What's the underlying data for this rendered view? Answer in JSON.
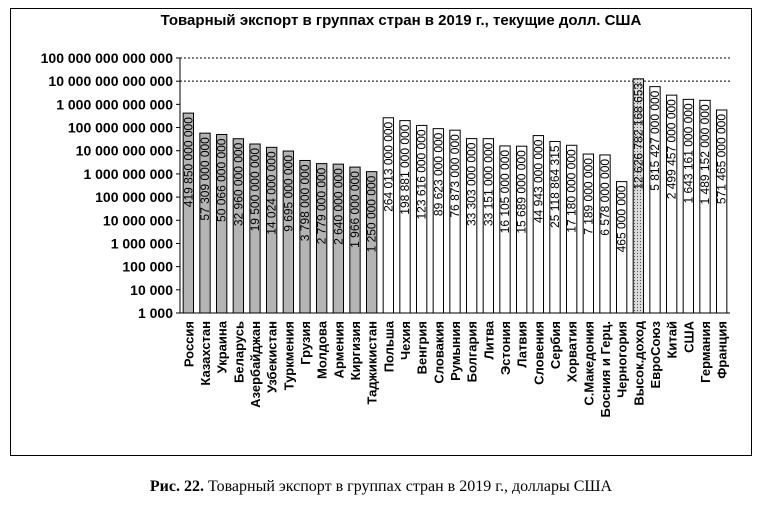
{
  "caption": {
    "label": "Рис. 22.",
    "text": "Товарный экспорт в группах стран в 2019 г., доллары США"
  },
  "colors": {
    "cis": "#b4b4b4",
    "highincome": "#dcdcdc",
    "other": "#ffffff"
  },
  "chart_data": {
    "type": "bar",
    "title": "Товарный экспорт в группах стран в 2019 г., текущие долл. США",
    "xlabel": "",
    "ylabel": "",
    "yscale": "log",
    "ylim": [
      1000,
      100000000000000
    ],
    "grid": "dotted horizontal lines at 10 000 000 000 000 and 100 000 000 000 000",
    "yticks": [
      "1 000",
      "10 000",
      "100 000",
      "1 000 000",
      "10 000 000",
      "100 000 000",
      "1 000 000 000",
      "10 000 000 000",
      "100 000 000 000",
      "1 000 000 000 000",
      "10 000 000 000 000",
      "100 000 000 000 000"
    ],
    "categories": [
      "Россия",
      "Казахстан",
      "Украина",
      "Беларусь",
      "Азербайджан",
      "Узбекистан",
      "Туркмения",
      "Грузия",
      "Молдова",
      "Армения",
      "Киргизия",
      "Таджикистан",
      "Польша",
      "Чехия",
      "Венгрия",
      "Словакия",
      "Румыния",
      "Болгария",
      "Литва",
      "Эстония",
      "Латвия",
      "Словения",
      "Сербия",
      "Хорватия",
      "С.Македония",
      "Босния и Герц.",
      "Черногория",
      "Высок.доход",
      "ЕвроСоюз",
      "Китай",
      "США",
      "Германия",
      "Франция"
    ],
    "values": [
      419850000000,
      57309000000,
      50066000000,
      32960000000,
      19500000000,
      14024000000,
      9695000000,
      3798000000,
      2779000000,
      2640000000,
      1966000000,
      1250000000,
      264013000000,
      198881000000,
      123616000000,
      89623000000,
      76873000000,
      33303000000,
      33151000000,
      16105000000,
      15689000000,
      44943000000,
      25118864315,
      17180000000,
      7189000000,
      6578000000,
      465000000,
      12626782168653,
      5815427000000,
      2499457000000,
      1643161000000,
      1489152000000,
      571465000000
    ],
    "labels": [
      "419 850 000 000",
      "57 309 000 000",
      "50 066 000 000",
      "32 960 000 000",
      "19 500 000 000",
      "14 024 000 000",
      "9 695 000 000",
      "3 798 000 000",
      "2 779 000 000",
      "2 640 000 000",
      "1 966 000 000",
      "1 250 000 000",
      "264 013 000 000",
      "198 881 000 000",
      "123 616 000 000",
      "89 623 000 000",
      "76 873 000 000",
      "33 303 000 000",
      "33 151 000 000",
      "16 105 000 000",
      "15 689 000 000",
      "44 943 000 000",
      "25 118 864 315",
      "17 180 000 000",
      "7 189 000 000",
      "6 578 000 000",
      "465 000 000",
      "12 626 782 168 653",
      "5 815 427 000 000",
      "2 499 457 000 000",
      "1 643 161 000 000",
      "1 489 152 000 000",
      "571 465 000 000"
    ],
    "groups": [
      "cis",
      "cis",
      "cis",
      "cis",
      "cis",
      "cis",
      "cis",
      "cis",
      "cis",
      "cis",
      "cis",
      "cis",
      "other",
      "other",
      "other",
      "other",
      "other",
      "other",
      "other",
      "other",
      "other",
      "other",
      "other",
      "other",
      "other",
      "other",
      "other",
      "highincome",
      "other",
      "other",
      "other",
      "other",
      "other"
    ]
  }
}
